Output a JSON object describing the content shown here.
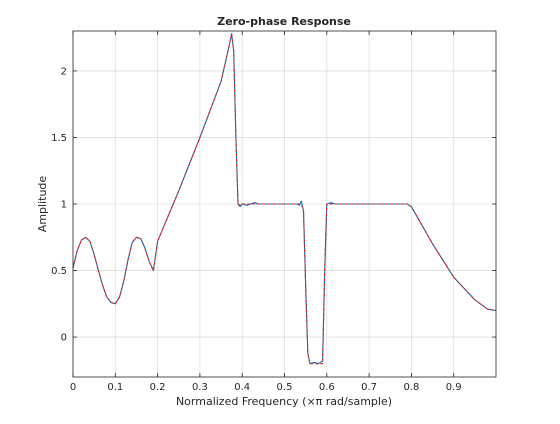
{
  "chart_data": {
    "type": "line",
    "title": "Zero-phase Response",
    "xlabel": "Normalized Frequency (×π rad/sample)",
    "ylabel": "Amplitude",
    "xlim": [
      0,
      1
    ],
    "ylim": [
      -0.3,
      2.3
    ],
    "grid": true,
    "xticks": [
      0,
      0.1,
      0.2,
      0.3,
      0.4,
      0.5,
      0.6,
      0.7,
      0.8,
      0.9
    ],
    "xtick_labels": [
      "0",
      "0.1",
      "0.2",
      "0.3",
      "0.4",
      "0.5",
      "0.6",
      "0.7",
      "0.8",
      "0.9"
    ],
    "yticks": [
      0,
      0.5,
      1,
      1.5,
      2
    ],
    "ytick_labels": [
      "0",
      "0.5",
      "1",
      "1.5",
      "2"
    ],
    "series": [
      {
        "color": "#0072bd",
        "line_style": "solid",
        "x": [
          0,
          0.01,
          0.02,
          0.03,
          0.04,
          0.05,
          0.06,
          0.07,
          0.08,
          0.09,
          0.1,
          0.11,
          0.12,
          0.13,
          0.14,
          0.15,
          0.16,
          0.17,
          0.18,
          0.19,
          0.2,
          0.25,
          0.3,
          0.35,
          0.37,
          0.375,
          0.38,
          0.385,
          0.39,
          0.395,
          0.4,
          0.41,
          0.42,
          0.43,
          0.44,
          0.45,
          0.5,
          0.52,
          0.53,
          0.535,
          0.54,
          0.545,
          0.55,
          0.555,
          0.56,
          0.57,
          0.58,
          0.59,
          0.595,
          0.6,
          0.61,
          0.62,
          0.65,
          0.7,
          0.75,
          0.78,
          0.79,
          0.8,
          0.85,
          0.9,
          0.95,
          0.98,
          1.0
        ],
        "y": [
          0.52,
          0.65,
          0.73,
          0.75,
          0.72,
          0.62,
          0.5,
          0.39,
          0.3,
          0.26,
          0.25,
          0.3,
          0.42,
          0.58,
          0.71,
          0.75,
          0.74,
          0.67,
          0.57,
          0.5,
          0.72,
          1.1,
          1.5,
          1.92,
          2.2,
          2.28,
          2.15,
          1.5,
          1.0,
          0.98,
          1.0,
          0.99,
          1.0,
          1.01,
          1.0,
          1.0,
          1.0,
          1.0,
          1.0,
          0.99,
          1.02,
          0.95,
          0.4,
          -0.12,
          -0.2,
          -0.19,
          -0.2,
          -0.18,
          0.5,
          1.0,
          1.01,
          1.0,
          1.0,
          1.0,
          1.0,
          1.0,
          1.0,
          0.98,
          0.7,
          0.45,
          0.28,
          0.21,
          0.2
        ]
      },
      {
        "color": "#d62728",
        "line_style": "dashed",
        "x": [
          0,
          0.01,
          0.02,
          0.03,
          0.04,
          0.05,
          0.06,
          0.07,
          0.08,
          0.09,
          0.1,
          0.11,
          0.12,
          0.13,
          0.14,
          0.15,
          0.16,
          0.17,
          0.18,
          0.19,
          0.2,
          0.25,
          0.3,
          0.35,
          0.37,
          0.375,
          0.38,
          0.385,
          0.39,
          0.395,
          0.4,
          0.41,
          0.42,
          0.43,
          0.44,
          0.45,
          0.5,
          0.52,
          0.53,
          0.535,
          0.54,
          0.545,
          0.55,
          0.555,
          0.56,
          0.57,
          0.58,
          0.59,
          0.595,
          0.6,
          0.61,
          0.62,
          0.65,
          0.7,
          0.75,
          0.78,
          0.79,
          0.8,
          0.85,
          0.9,
          0.95,
          0.98,
          1.0
        ],
        "y": [
          0.52,
          0.65,
          0.73,
          0.75,
          0.72,
          0.62,
          0.5,
          0.39,
          0.3,
          0.26,
          0.25,
          0.3,
          0.42,
          0.58,
          0.71,
          0.75,
          0.74,
          0.67,
          0.57,
          0.5,
          0.72,
          1.1,
          1.5,
          1.92,
          2.2,
          2.28,
          2.15,
          1.5,
          1.0,
          0.99,
          1.0,
          1.0,
          1.0,
          1.0,
          1.0,
          1.0,
          1.0,
          1.0,
          1.0,
          1.0,
          1.0,
          0.95,
          0.4,
          -0.12,
          -0.2,
          -0.2,
          -0.2,
          -0.2,
          0.5,
          1.0,
          1.0,
          1.0,
          1.0,
          1.0,
          1.0,
          1.0,
          1.0,
          0.98,
          0.7,
          0.45,
          0.28,
          0.21,
          0.2
        ]
      }
    ]
  }
}
